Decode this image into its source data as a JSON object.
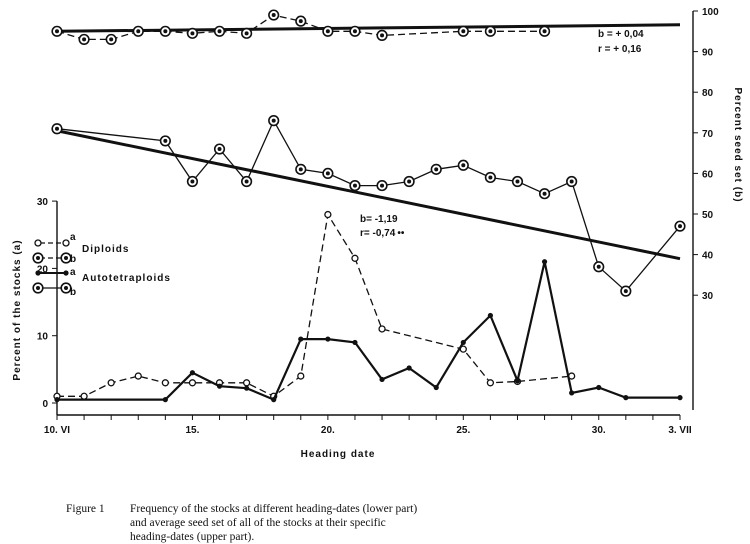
{
  "chart_data": [
    {
      "type": "line",
      "panel": "upper",
      "x_unit": "heading date (June 10 – July 3)",
      "x_tick_labels": [
        "10. VI",
        "15.",
        "20.",
        "25.",
        "30.",
        "3. VII"
      ],
      "x_tick_days": [
        10,
        15,
        20,
        25,
        30,
        33
      ],
      "xlabel": "Heading date",
      "ylabel": "Percent seed set (b)",
      "y_axis_side": "right",
      "ylim": [
        25,
        100
      ],
      "y_ticks": [
        30,
        40,
        50,
        60,
        70,
        80,
        90,
        100
      ],
      "series": [
        {
          "name": "Diploids",
          "sub_label": "b",
          "style": "dashed",
          "x": [
            10,
            11,
            12,
            13,
            14,
            15,
            16,
            17,
            18,
            19,
            20,
            21,
            22,
            25,
            26,
            28
          ],
          "y": [
            95,
            93,
            93,
            95,
            95,
            94.5,
            95,
            94.5,
            99,
            97.5,
            95,
            95,
            94,
            95,
            95,
            95
          ]
        },
        {
          "name": "Autotetraploids",
          "sub_label": "b",
          "style": "solid",
          "x": [
            10,
            14,
            15,
            16,
            17,
            18,
            19,
            20,
            21,
            22,
            23,
            24,
            25,
            26,
            27,
            28,
            29,
            30,
            31,
            33
          ],
          "y": [
            71,
            68,
            58,
            66,
            58,
            73,
            61,
            60,
            57,
            57,
            58,
            61,
            62,
            59,
            58,
            55,
            58,
            37,
            31,
            47
          ]
        }
      ],
      "regression_lines": [
        {
          "series": "Diploids",
          "x": [
            10,
            33
          ],
          "y": [
            95,
            96.6
          ],
          "label_b": "b = + 0,04",
          "label_r": "r = + 0,16"
        },
        {
          "series": "Autotetraploids",
          "x": [
            10,
            33
          ],
          "y": [
            70.5,
            39
          ],
          "label_b": "b= -1,19",
          "label_r": "r= -0,74",
          "significance": "••"
        }
      ]
    },
    {
      "type": "line",
      "panel": "lower",
      "x_tick_labels": [
        "10. VI",
        "15.",
        "20.",
        "25.",
        "30.",
        "3. VII"
      ],
      "x_tick_days": [
        10,
        15,
        20,
        25,
        30,
        33
      ],
      "xlabel": "Heading date",
      "ylabel": "Percent of the stocks (a)",
      "y_axis_side": "left",
      "ylim": [
        0,
        30
      ],
      "y_ticks": [
        0,
        10,
        20,
        30
      ],
      "series": [
        {
          "name": "Diploids",
          "sub_label": "a",
          "style": "dashed",
          "x": [
            10,
            11,
            12,
            13,
            14,
            15,
            16,
            17,
            18,
            19,
            20,
            21,
            22,
            25,
            26,
            27,
            29
          ],
          "y": [
            1,
            1,
            3,
            4,
            3,
            3,
            3,
            3,
            1,
            4,
            28,
            21.5,
            11,
            8,
            3,
            3.2,
            4
          ]
        },
        {
          "name": "Autotetraploids",
          "sub_label": "a",
          "style": "solid",
          "x": [
            10,
            14,
            15,
            16,
            17,
            18,
            19,
            20,
            21,
            22,
            23,
            24,
            25,
            26,
            27,
            28,
            29,
            30,
            31,
            33
          ],
          "y": [
            0.5,
            0.5,
            4.5,
            2.5,
            2.2,
            0.5,
            9.5,
            9.5,
            9,
            3.5,
            5.2,
            2.3,
            9,
            13,
            3.3,
            21,
            1.5,
            2.3,
            0.8,
            0.8
          ]
        }
      ]
    }
  ],
  "legend": {
    "items": [
      {
        "marker": "a",
        "label": "Diploids"
      },
      {
        "marker": "b",
        "label": ""
      },
      {
        "marker": "a",
        "label": "Autotetraploids"
      },
      {
        "marker": "b",
        "label": ""
      }
    ]
  },
  "caption": {
    "label": "Figure 1",
    "lines": [
      "Frequency of the stocks at different heading-dates (lower part)",
      "and average seed set of all of the stocks at their specific",
      "heading-dates (upper part)."
    ]
  }
}
